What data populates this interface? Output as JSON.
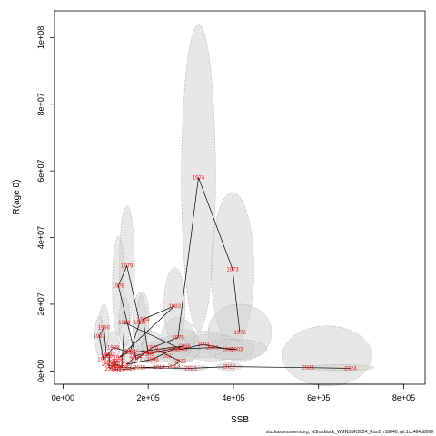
{
  "chart_data": {
    "type": "scatter",
    "title": "",
    "xlabel": "SSB",
    "ylabel": "R(age 0)",
    "xlim": [
      -20000,
      850000
    ],
    "ylim": [
      -4000000,
      108000000
    ],
    "x_ticks": [
      0,
      200000,
      400000,
      600000,
      800000
    ],
    "x_tick_labels": [
      "0e+00",
      "2e+05",
      "4e+05",
      "6e+05",
      "8e+05"
    ],
    "y_ticks": [
      0,
      20000000,
      40000000,
      60000000,
      80000000,
      100000000
    ],
    "y_tick_labels": [
      "0e+00",
      "2e+07",
      "4e+07",
      "6e+07",
      "8e+07",
      "1e+08"
    ],
    "grid": false,
    "legend": "none",
    "colors": {
      "label": "#e41a1c",
      "line": "#000000",
      "ellipse_fill": "#d3d3d3",
      "ellipse_stroke": "#999999"
    },
    "points": [
      {
        "year": "1972",
        "ssb": 415000,
        "rec": 11500000
      },
      {
        "year": "1973",
        "ssb": 398000,
        "rec": 30500000
      },
      {
        "year": "1974",
        "ssb": 318000,
        "rec": 58000000
      },
      {
        "year": "1975",
        "ssb": 270000,
        "rec": 10000000
      },
      {
        "year": "1976",
        "ssb": 210000,
        "rec": 7000000
      },
      {
        "year": "1977",
        "ssb": 172000,
        "rec": 3500000
      },
      {
        "year": "1978",
        "ssb": 130000,
        "rec": 25500000
      },
      {
        "year": "1979",
        "ssb": 150000,
        "rec": 31500000
      },
      {
        "year": "1980",
        "ssb": 180000,
        "rec": 14500000
      },
      {
        "year": "1981",
        "ssb": 158000,
        "rec": 6000000
      },
      {
        "year": "1982",
        "ssb": 132000,
        "rec": 4000000
      },
      {
        "year": "1983",
        "ssb": 262000,
        "rec": 19500000
      },
      {
        "year": "1984",
        "ssb": 188000,
        "rec": 15500000
      },
      {
        "year": "1985",
        "ssb": 200000,
        "rec": 5000000
      },
      {
        "year": "1986",
        "ssb": 285000,
        "rec": 7500000
      },
      {
        "year": "1987",
        "ssb": 160000,
        "rec": 5500000
      },
      {
        "year": "1988",
        "ssb": 118000,
        "rec": 7000000
      },
      {
        "year": "1989",
        "ssb": 102000,
        "rec": 4500000
      },
      {
        "year": "1990",
        "ssb": 96000,
        "rec": 13000000
      },
      {
        "year": "1991",
        "ssb": 85000,
        "rec": 10500000
      },
      {
        "year": "1992",
        "ssb": 95000,
        "rec": 3500000
      },
      {
        "year": "1993",
        "ssb": 108000,
        "rec": 5000000
      },
      {
        "year": "1994",
        "ssb": 110000,
        "rec": 2500000
      },
      {
        "year": "1995",
        "ssb": 128000,
        "rec": 3000000
      },
      {
        "year": "1996",
        "ssb": 118000,
        "rec": 1500000
      },
      {
        "year": "1997",
        "ssb": 126000,
        "rec": 2000000
      },
      {
        "year": "1998",
        "ssb": 138000,
        "rec": 1000000
      },
      {
        "year": "1999",
        "ssb": 144000,
        "rec": 14500000
      },
      {
        "year": "2000",
        "ssb": 278000,
        "rec": 6500000
      },
      {
        "year": "2001",
        "ssb": 330000,
        "rec": 8000000
      },
      {
        "year": "2002",
        "ssb": 388000,
        "rec": 6500000
      },
      {
        "year": "2003",
        "ssb": 408000,
        "rec": 6500000
      },
      {
        "year": "2004",
        "ssb": 350000,
        "rec": 7000000
      },
      {
        "year": "2005",
        "ssb": 258000,
        "rec": 6500000
      },
      {
        "year": "2006",
        "ssb": 210000,
        "rec": 3500000
      },
      {
        "year": "2007",
        "ssb": 150000,
        "rec": 2000000
      },
      {
        "year": "2008",
        "ssb": 170000,
        "rec": 4500000
      },
      {
        "year": "2009",
        "ssb": 198000,
        "rec": 5500000
      },
      {
        "year": "2010",
        "ssb": 228000,
        "rec": 6000000
      },
      {
        "year": "2011",
        "ssb": 248000,
        "rec": 4500000
      },
      {
        "year": "2012",
        "ssb": 275000,
        "rec": 3000000
      },
      {
        "year": "2013",
        "ssb": 260000,
        "rec": 1500000
      },
      {
        "year": "2014",
        "ssb": 225000,
        "rec": 1200000
      },
      {
        "year": "2015",
        "ssb": 180000,
        "rec": 1000000
      },
      {
        "year": "2016",
        "ssb": 155000,
        "rec": 600000
      },
      {
        "year": "2017",
        "ssb": 130000,
        "rec": 300000
      },
      {
        "year": "2018",
        "ssb": 112000,
        "rec": 700000
      },
      {
        "year": "2019",
        "ssb": 105000,
        "rec": 2000000
      },
      {
        "year": "2020",
        "ssb": 122000,
        "rec": 1000000
      },
      {
        "year": "2021",
        "ssb": 300000,
        "rec": 800000
      },
      {
        "year": "2022",
        "ssb": 390000,
        "rec": 1300000
      },
      {
        "year": "2023",
        "ssb": 575000,
        "rec": 1000000
      },
      {
        "year": "2024",
        "ssb": 675000,
        "rec": 800000
      }
    ],
    "ellipses": [
      {
        "year": "1974",
        "cx": 318000,
        "cy": 58000000,
        "rx": 40000,
        "ry": 46000000
      },
      {
        "year": "1973",
        "cx": 398000,
        "cy": 30500000,
        "rx": 50000,
        "ry": 23000000
      },
      {
        "year": "1972",
        "cx": 415000,
        "cy": 11500000,
        "rx": 75000,
        "ry": 8500000
      },
      {
        "year": "1983",
        "cx": 262000,
        "cy": 19500000,
        "rx": 25000,
        "ry": 11500000
      },
      {
        "year": "1979",
        "cx": 150000,
        "cy": 31500000,
        "rx": 18000,
        "ry": 18000000
      },
      {
        "year": "1978",
        "cx": 130000,
        "cy": 25500000,
        "rx": 14000,
        "ry": 15000000
      },
      {
        "year": "1980",
        "cx": 180000,
        "cy": 14500000,
        "rx": 16000,
        "ry": 9000000
      },
      {
        "year": "1984",
        "cx": 188000,
        "cy": 15500000,
        "rx": 14000,
        "ry": 8000000
      },
      {
        "year": "1999",
        "cx": 144000,
        "cy": 14500000,
        "rx": 13000,
        "ry": 7500000
      },
      {
        "year": "1990",
        "cx": 96000,
        "cy": 13000000,
        "rx": 12000,
        "ry": 7000000
      },
      {
        "year": "1991",
        "cx": 85000,
        "cy": 10500000,
        "rx": 10000,
        "ry": 6000000
      },
      {
        "year": "2004",
        "cx": 350000,
        "cy": 7000000,
        "rx": 70000,
        "ry": 4000000
      },
      {
        "year": "2003",
        "cx": 408000,
        "cy": 6500000,
        "rx": 70000,
        "ry": 3000000
      },
      {
        "year": "2002",
        "cx": 388000,
        "cy": 6500000,
        "rx": 60000,
        "ry": 3000000
      },
      {
        "year": "2001",
        "cx": 330000,
        "cy": 8000000,
        "rx": 55000,
        "ry": 4000000
      },
      {
        "year": "2000",
        "cx": 278000,
        "cy": 6500000,
        "rx": 45000,
        "ry": 4000000
      },
      {
        "year": "1986",
        "cx": 285000,
        "cy": 7500000,
        "rx": 35000,
        "ry": 5000000
      },
      {
        "year": "1975",
        "cx": 270000,
        "cy": 10000000,
        "rx": 40000,
        "ry": 6000000
      },
      {
        "year": "2005",
        "cx": 258000,
        "cy": 6500000,
        "rx": 40000,
        "ry": 4000000
      },
      {
        "year": "2010",
        "cx": 228000,
        "cy": 6000000,
        "rx": 30000,
        "ry": 3500000
      },
      {
        "year": "2009",
        "cx": 198000,
        "cy": 5500000,
        "rx": 25000,
        "ry": 3000000
      },
      {
        "year": "1976",
        "cx": 210000,
        "cy": 7000000,
        "rx": 25000,
        "ry": 5000000
      },
      {
        "year": "1988",
        "cx": 118000,
        "cy": 7000000,
        "rx": 15000,
        "ry": 5000000
      },
      {
        "year": "1987",
        "cx": 160000,
        "cy": 5500000,
        "rx": 18000,
        "ry": 4000000
      },
      {
        "year": "2023",
        "cx": 620000,
        "cy": 4500000,
        "rx": 105000,
        "ry": 9000000
      },
      {
        "year": "2022",
        "cx": 390000,
        "cy": 1300000,
        "rx": 30000,
        "ry": 1200000
      },
      {
        "year": "2024",
        "cx": 650000,
        "cy": 1000000,
        "rx": 80000,
        "ry": 900000
      },
      {
        "year": "2021",
        "cx": 300000,
        "cy": 900000,
        "rx": 40000,
        "ry": 800000
      }
    ]
  },
  "footer": "stockassessment.org, NShaddock_WGNSSK2024_Run2, r18840, git:1cc464b8069"
}
